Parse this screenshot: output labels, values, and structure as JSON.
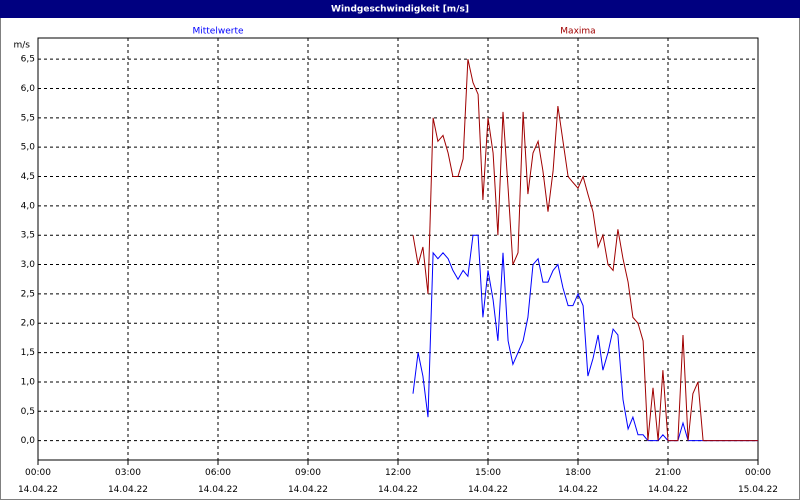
{
  "window_title": "Windgeschwindigkeit [m/s]",
  "chart_data": {
    "type": "line",
    "y_unit": "m/s",
    "x": [
      12.5,
      12.67,
      12.83,
      13,
      13.17,
      13.33,
      13.5,
      13.67,
      13.83,
      14,
      14.17,
      14.33,
      14.5,
      14.67,
      14.83,
      15,
      15.17,
      15.33,
      15.5,
      15.67,
      15.83,
      16,
      16.17,
      16.33,
      16.5,
      16.67,
      16.83,
      17,
      17.17,
      17.33,
      17.5,
      17.67,
      17.83,
      18,
      18.17,
      18.33,
      18.5,
      18.67,
      18.83,
      19,
      19.17,
      19.33,
      19.5,
      19.67,
      19.83,
      20,
      20.17,
      20.33,
      20.5,
      20.67,
      20.83,
      21,
      21.17,
      21.33,
      21.5,
      21.67,
      21.83,
      22,
      22.17,
      22.33,
      22.5,
      22.67,
      22.83,
      23,
      23.17,
      23.33,
      23.5,
      23.67,
      23.83,
      24
    ],
    "series": [
      {
        "name": "Mittelwerte",
        "color": "#0000ff",
        "values": [
          0.8,
          1.5,
          1.1,
          0.4,
          3.2,
          3.1,
          3.2,
          3.1,
          2.9,
          2.75,
          2.9,
          2.8,
          3.5,
          3.5,
          2.1,
          2.9,
          2.4,
          1.7,
          3.2,
          1.7,
          1.3,
          1.5,
          1.7,
          2.1,
          3.0,
          3.1,
          2.7,
          2.7,
          2.9,
          3.0,
          2.6,
          2.3,
          2.3,
          2.5,
          2.3,
          1.1,
          1.4,
          1.8,
          1.2,
          1.5,
          1.9,
          1.8,
          0.7,
          0.2,
          0.4,
          0.1,
          0.1,
          0,
          0,
          0,
          0.1,
          0,
          0,
          0,
          0.3,
          0,
          0,
          0,
          0,
          0,
          0,
          0,
          0,
          0,
          0,
          0,
          0,
          0,
          0,
          0
        ]
      },
      {
        "name": "Maxima",
        "color": "#a00000",
        "values": [
          3.5,
          3.0,
          3.3,
          2.5,
          5.5,
          5.1,
          5.2,
          4.9,
          4.5,
          4.5,
          4.8,
          6.5,
          6.1,
          5.9,
          4.1,
          5.5,
          4.9,
          3.5,
          5.6,
          4.3,
          3.0,
          3.2,
          5.6,
          4.2,
          4.9,
          5.1,
          4.6,
          3.9,
          4.6,
          5.7,
          5.1,
          4.5,
          4.4,
          4.3,
          4.5,
          4.2,
          3.9,
          3.3,
          3.5,
          3.0,
          2.9,
          3.6,
          3.1,
          2.7,
          2.1,
          2.0,
          1.7,
          0,
          0.9,
          0,
          1.2,
          0,
          0,
          0,
          1.8,
          0,
          0.8,
          1.0,
          0,
          0,
          0,
          0,
          0,
          0,
          0,
          0,
          0,
          0,
          0,
          0
        ]
      }
    ],
    "xlim": [
      0,
      24
    ],
    "xticks": [
      {
        "value": 0,
        "label": "00:00\n14.04.22"
      },
      {
        "value": 3,
        "label": "03:00\n14.04.22"
      },
      {
        "value": 6,
        "label": "06:00\n14.04.22"
      },
      {
        "value": 9,
        "label": "09:00\n14.04.22"
      },
      {
        "value": 12,
        "label": "12:00\n14.04.22"
      },
      {
        "value": 15,
        "label": "15:00\n14.04.22"
      },
      {
        "value": 18,
        "label": "18:00\n14.04.22"
      },
      {
        "value": 21,
        "label": "21:00\n14.04.22"
      },
      {
        "value": 24,
        "label": "00:00\n15.04.22"
      }
    ],
    "ylim": [
      -0.33,
      6.86
    ],
    "yticks": [
      {
        "value": 0,
        "label": "0,0"
      },
      {
        "value": 0.5,
        "label": "0,5"
      },
      {
        "value": 1,
        "label": "1,0"
      },
      {
        "value": 1.5,
        "label": "1,5"
      },
      {
        "value": 2,
        "label": "2,0"
      },
      {
        "value": 2.5,
        "label": "2,5"
      },
      {
        "value": 3,
        "label": "3,0"
      },
      {
        "value": 3.5,
        "label": "3,5"
      },
      {
        "value": 4,
        "label": "4,0"
      },
      {
        "value": 4.5,
        "label": "4,5"
      },
      {
        "value": 5,
        "label": "5,0"
      },
      {
        "value": 5.5,
        "label": "5,5"
      },
      {
        "value": 6,
        "label": "6,0"
      },
      {
        "value": 6.5,
        "label": "6,5"
      }
    ],
    "grid": true
  }
}
